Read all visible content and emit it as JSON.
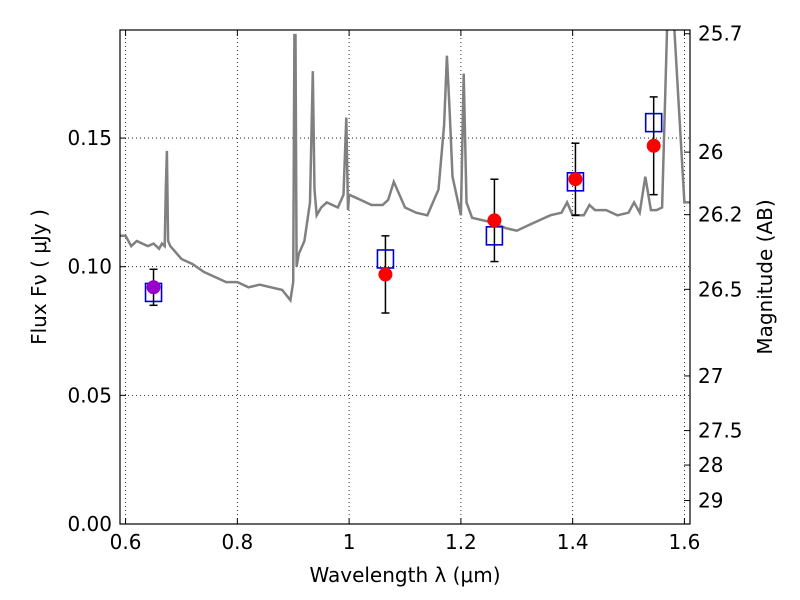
{
  "chart_data": {
    "type": "scatter",
    "xlabel": "Wavelength  λ (μm)",
    "ylabel": "Flux  Fν  ( μJy )",
    "y2label": "Magnitude (AB)",
    "xlim": [
      0.59,
      1.61
    ],
    "ylim": [
      0.0,
      0.192
    ],
    "x_ticks": [
      {
        "value": 0.6,
        "label": "0.6"
      },
      {
        "value": 0.8,
        "label": "0.8"
      },
      {
        "value": 1.0,
        "label": "1"
      },
      {
        "value": 1.2,
        "label": "1.2"
      },
      {
        "value": 1.4,
        "label": "1.4"
      },
      {
        "value": 1.6,
        "label": "1.6"
      }
    ],
    "y_ticks": [
      {
        "value": 0.0,
        "label": "0.00"
      },
      {
        "value": 0.05,
        "label": "0.05"
      },
      {
        "value": 0.1,
        "label": "0.10"
      },
      {
        "value": 0.15,
        "label": "0.15"
      }
    ],
    "mag_ticks": [
      {
        "mag": 25.7,
        "label": "25.7"
      },
      {
        "mag": 26.0,
        "label": "26"
      },
      {
        "mag": 26.2,
        "label": "26.2"
      },
      {
        "mag": 26.5,
        "label": "26.5"
      },
      {
        "mag": 27.0,
        "label": "27"
      },
      {
        "mag": 27.5,
        "label": "27.5"
      },
      {
        "mag": 28.0,
        "label": "28"
      },
      {
        "mag": 29.0,
        "label": "29"
      }
    ],
    "grid": true,
    "colors": {
      "spectrum": "#808080",
      "observed": "#ff0000",
      "model": "#0000cc",
      "overlap": "#9900cc",
      "errorbar": "#000000"
    },
    "series": [
      {
        "kind": "line",
        "x": [
          0.59,
          0.6,
          0.61,
          0.62,
          0.63,
          0.64,
          0.65,
          0.66,
          0.665,
          0.67,
          0.672,
          0.674,
          0.676,
          0.68,
          0.7,
          0.72,
          0.74,
          0.76,
          0.78,
          0.8,
          0.82,
          0.84,
          0.86,
          0.88,
          0.895,
          0.9,
          0.902,
          0.904,
          0.906,
          0.91,
          0.92,
          0.93,
          0.935,
          0.938,
          0.942,
          0.95,
          0.96,
          0.97,
          0.98,
          0.99,
          0.995,
          0.998,
          1.0,
          1.01,
          1.02,
          1.04,
          1.06,
          1.07,
          1.08,
          1.1,
          1.12,
          1.14,
          1.16,
          1.17,
          1.175,
          1.18,
          1.185,
          1.19,
          1.2,
          1.205,
          1.21,
          1.22,
          1.24,
          1.26,
          1.28,
          1.3,
          1.32,
          1.34,
          1.36,
          1.38,
          1.39,
          1.4,
          1.41,
          1.42,
          1.43,
          1.44,
          1.46,
          1.48,
          1.5,
          1.51,
          1.52,
          1.53,
          1.54,
          1.55,
          1.56,
          1.57,
          1.58,
          1.6,
          1.61
        ],
        "y": [
          0.112,
          0.112,
          0.108,
          0.11,
          0.109,
          0.108,
          0.109,
          0.107,
          0.109,
          0.108,
          0.13,
          0.145,
          0.11,
          0.108,
          0.103,
          0.101,
          0.098,
          0.096,
          0.094,
          0.094,
          0.092,
          0.093,
          0.092,
          0.091,
          0.087,
          0.094,
          0.19,
          0.19,
          0.1,
          0.105,
          0.11,
          0.125,
          0.176,
          0.13,
          0.12,
          0.123,
          0.125,
          0.124,
          0.123,
          0.128,
          0.158,
          0.122,
          0.128,
          0.127,
          0.126,
          0.124,
          0.124,
          0.126,
          0.133,
          0.123,
          0.121,
          0.12,
          0.13,
          0.155,
          0.182,
          0.16,
          0.135,
          0.13,
          0.12,
          0.175,
          0.125,
          0.119,
          0.118,
          0.117,
          0.115,
          0.114,
          0.116,
          0.118,
          0.12,
          0.121,
          0.125,
          0.12,
          0.12,
          0.12,
          0.124,
          0.122,
          0.122,
          0.12,
          0.121,
          0.125,
          0.121,
          0.135,
          0.122,
          0.122,
          0.123,
          0.2,
          0.2,
          0.125,
          0.125
        ]
      },
      {
        "kind": "points",
        "name": "observed",
        "x": [
          0.65,
          1.065,
          1.26,
          1.405,
          1.545
        ],
        "y": [
          0.092,
          0.097,
          0.118,
          0.134,
          0.147
        ],
        "yerr": [
          0.007,
          0.015,
          0.016,
          0.014,
          0.019
        ]
      },
      {
        "kind": "points",
        "name": "model",
        "x": [
          0.65,
          1.065,
          1.26,
          1.405,
          1.545
        ],
        "y": [
          0.09,
          0.103,
          0.112,
          0.133,
          0.156
        ]
      }
    ]
  }
}
